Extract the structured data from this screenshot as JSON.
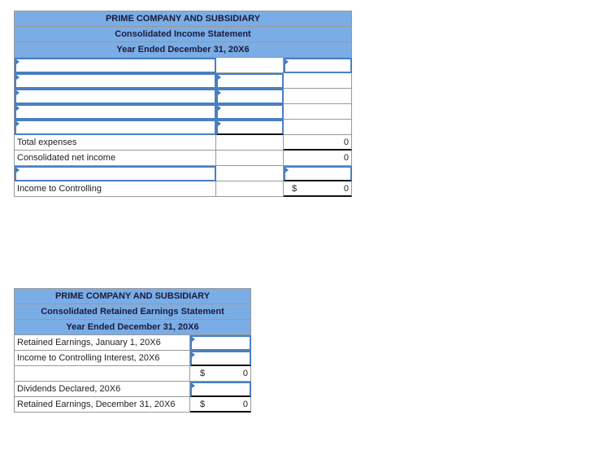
{
  "income_statement": {
    "title": "PRIME COMPANY AND SUBSIDIARY",
    "subtitle": "Consolidated Income Statement",
    "period": "Year Ended December 31, 20X6",
    "total_expenses_label": "Total expenses",
    "total_expenses_value": "0",
    "net_income_label": "Consolidated net income",
    "net_income_value": "0",
    "controlling_label": "Income to Controlling",
    "controlling_currency": "$",
    "controlling_value": "0"
  },
  "retained_earnings": {
    "title": "PRIME COMPANY AND SUBSIDIARY",
    "subtitle": "Consolidated Retained Earnings Statement",
    "period": "Year Ended December 31, 20X6",
    "re_jan_label": "Retained Earnings, January 1, 20X6",
    "income_ci_label": "Income to Controlling Interest, 20X6",
    "subtotal_currency": "$",
    "subtotal_value": "0",
    "dividends_label": "Dividends Declared, 20X6",
    "re_dec_label": "Retained Earnings, December 31, 20X6",
    "re_dec_currency": "$",
    "re_dec_value": "0"
  }
}
